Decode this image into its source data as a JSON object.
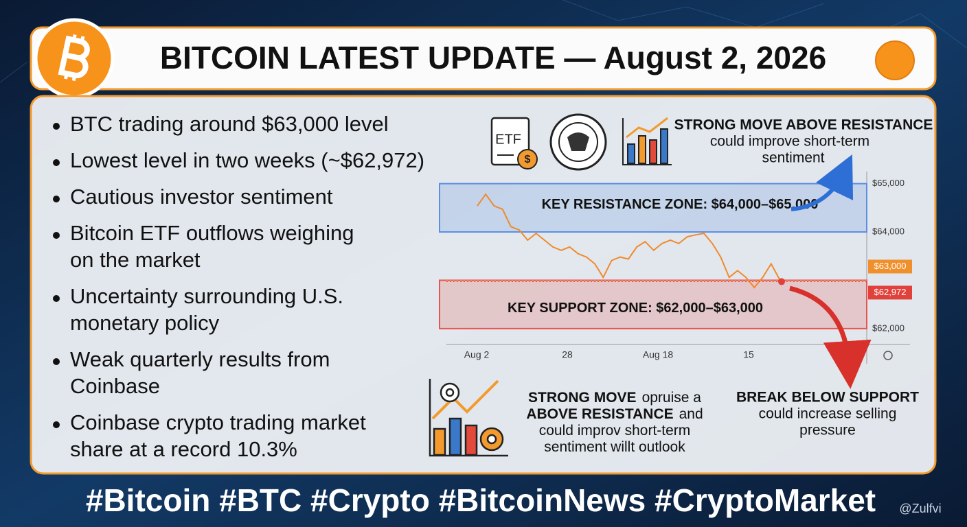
{
  "header": {
    "title": "BITCOIN LATEST UPDATE — August 2, 2026"
  },
  "bullets": [
    [
      "BTC trading around $63,000 level"
    ],
    [
      "Lowest level in two weeks (~$62,972)"
    ],
    [
      "Cautious investor sentiment"
    ],
    [
      "Bitcoin ETF outflows weighing",
      "on the market"
    ],
    [
      "Uncertainty surrounding U.S.",
      "monetary policy"
    ],
    [
      "Weak quarterly results from",
      "Coinbase"
    ],
    [
      "Coinbase crypto trading market",
      "share at a record 10.3%"
    ]
  ],
  "icons": {
    "etf_label": "ETF"
  },
  "chart": {
    "type": "line",
    "color": "#f08a2c",
    "x_labels": [
      "Aug 2",
      "28",
      "Aug 18",
      "15"
    ],
    "values": [
      64540,
      64780,
      64540,
      64470,
      64110,
      64040,
      63830,
      63970,
      63830,
      63690,
      63620,
      63690,
      63550,
      63480,
      63340,
      63060,
      63410,
      63480,
      63440,
      63690,
      63800,
      63620,
      63760,
      63830,
      63760,
      63900,
      63940,
      63970,
      63760,
      63480,
      63060,
      63200,
      63060,
      62850,
      63060,
      63340,
      63020
    ],
    "ylim": [
      61700,
      65250
    ],
    "yticks": [
      {
        "value": 65000,
        "label": "$65,000"
      },
      {
        "value": 64000,
        "label": "$64,000"
      },
      {
        "value": 62000,
        "label": "$62,000"
      }
    ],
    "price_markers": [
      {
        "value": 63000,
        "label": "$63,000",
        "color": "#f0902c"
      },
      {
        "value": 62972,
        "label": "$62,972",
        "color": "#e0413a"
      }
    ],
    "zones": [
      {
        "label": "KEY RESISTANCE ZONE: $64,000–$65,000",
        "range": [
          64000,
          65000
        ],
        "color": "#5b8fe0"
      },
      {
        "label": "KEY SUPPORT ZONE: $62,000–$63,000",
        "range": [
          62000,
          63000
        ],
        "color": "#e8554e"
      }
    ]
  },
  "callouts": {
    "top": {
      "title": "STRONG MOVE ABOVE RESISTANCE",
      "lines": [
        "could improve short-term",
        "sentiment"
      ]
    },
    "bottom_middle": {
      "lines": [
        {
          "bold": "STRONG MOVE",
          "text": "opruise a"
        },
        {
          "bold": "ABOVE RESISTANCE",
          "text": "and"
        },
        {
          "text": "could improv short-term"
        },
        {
          "text": "sentiment willt  outlook"
        }
      ]
    },
    "bottom_right": {
      "title": "BREAK BELOW SUPPORT",
      "lines": [
        "could increase selling",
        "pressure"
      ]
    }
  },
  "footer": {
    "hashtags": "#Bitcoin #BTC #Crypto #BitcoinNews #CryptoMarket",
    "watermark": "@Zulfvi"
  }
}
